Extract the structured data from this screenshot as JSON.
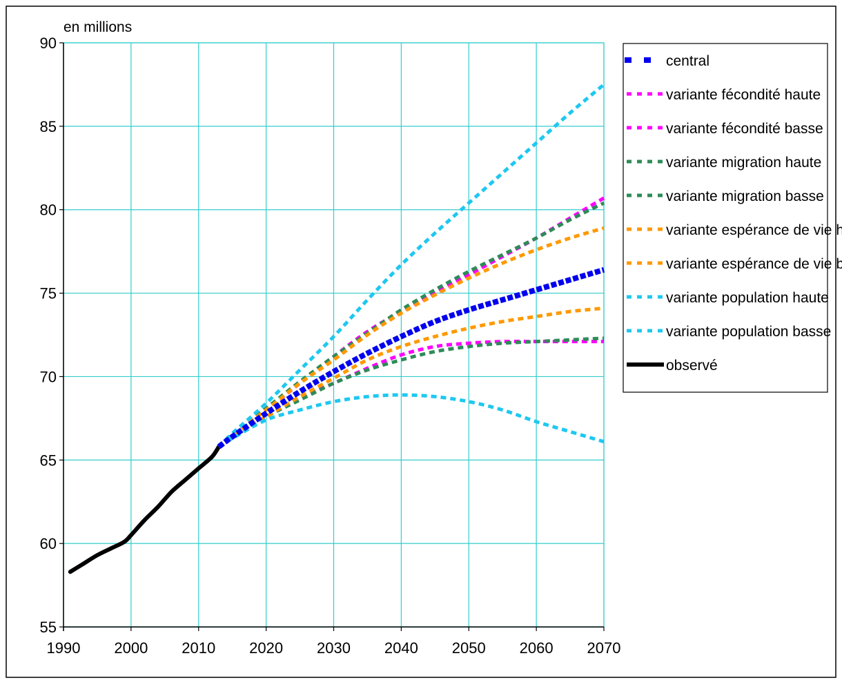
{
  "chart_data": {
    "type": "line",
    "unit_label": "en millions",
    "xlim": [
      1990,
      2070
    ],
    "ylim": [
      55,
      90
    ],
    "x_ticks": [
      1990,
      2000,
      2010,
      2020,
      2030,
      2040,
      2050,
      2060,
      2070
    ],
    "y_ticks": [
      55,
      60,
      65,
      70,
      75,
      80,
      85,
      90
    ],
    "grid": true,
    "legend_position": "right",
    "series": [
      {
        "name": "central",
        "color": "#0000ee",
        "style": "dotted-thick",
        "x": [
          2013,
          2015,
          2020,
          2025,
          2030,
          2035,
          2040,
          2045,
          2050,
          2055,
          2060,
          2065,
          2070
        ],
        "y": [
          65.8,
          66.4,
          67.8,
          69.1,
          70.3,
          71.4,
          72.4,
          73.3,
          74.0,
          74.6,
          75.2,
          75.8,
          76.4
        ]
      },
      {
        "name": "variante fécondité haute",
        "color": "#ff00ff",
        "style": "dotted",
        "x": [
          2013,
          2015,
          2020,
          2025,
          2030,
          2035,
          2040,
          2045,
          2050,
          2055,
          2060,
          2065,
          2070
        ],
        "y": [
          65.8,
          66.5,
          68.0,
          69.6,
          71.2,
          72.7,
          73.9,
          75.0,
          76.1,
          77.2,
          78.3,
          79.5,
          80.7
        ]
      },
      {
        "name": "variante fécondité basse",
        "color": "#ff00ff",
        "style": "dotted",
        "x": [
          2013,
          2015,
          2020,
          2025,
          2030,
          2035,
          2040,
          2045,
          2050,
          2055,
          2060,
          2065,
          2070
        ],
        "y": [
          65.8,
          66.4,
          67.6,
          68.7,
          69.6,
          70.5,
          71.3,
          71.8,
          72.0,
          72.1,
          72.1,
          72.1,
          72.1
        ]
      },
      {
        "name": "variante migration haute",
        "color": "#2e8b57",
        "style": "dotted",
        "x": [
          2013,
          2015,
          2020,
          2025,
          2030,
          2035,
          2040,
          2045,
          2050,
          2055,
          2060,
          2065,
          2070
        ],
        "y": [
          65.8,
          66.5,
          68.1,
          69.7,
          71.2,
          72.6,
          74.0,
          75.2,
          76.3,
          77.3,
          78.3,
          79.4,
          80.4
        ]
      },
      {
        "name": "variante migration basse",
        "color": "#2e8b57",
        "style": "dotted",
        "x": [
          2013,
          2015,
          2020,
          2025,
          2030,
          2035,
          2040,
          2045,
          2050,
          2055,
          2060,
          2065,
          2070
        ],
        "y": [
          65.8,
          66.4,
          67.6,
          68.6,
          69.6,
          70.4,
          71.0,
          71.5,
          71.8,
          72.0,
          72.1,
          72.2,
          72.3
        ]
      },
      {
        "name": "variante espérance de vie haute",
        "color": "#ff9900",
        "style": "dotted",
        "x": [
          2013,
          2015,
          2020,
          2025,
          2030,
          2035,
          2040,
          2045,
          2050,
          2055,
          2060,
          2065,
          2070
        ],
        "y": [
          65.8,
          66.5,
          68.0,
          69.6,
          71.0,
          72.5,
          73.8,
          74.9,
          75.9,
          76.8,
          77.6,
          78.3,
          78.9
        ]
      },
      {
        "name": "variante espérance de vie basse",
        "color": "#ff9900",
        "style": "dotted",
        "x": [
          2013,
          2015,
          2020,
          2025,
          2030,
          2035,
          2040,
          2045,
          2050,
          2055,
          2060,
          2065,
          2070
        ],
        "y": [
          65.8,
          66.4,
          67.6,
          68.8,
          69.9,
          71.0,
          71.8,
          72.4,
          72.9,
          73.3,
          73.6,
          73.9,
          74.1
        ]
      },
      {
        "name": "variante population haute",
        "color": "#1ec8f0",
        "style": "dotted",
        "x": [
          2013,
          2015,
          2020,
          2025,
          2030,
          2035,
          2040,
          2045,
          2050,
          2055,
          2060,
          2065,
          2070
        ],
        "y": [
          65.8,
          66.6,
          68.4,
          70.4,
          72.4,
          74.6,
          76.7,
          78.6,
          80.4,
          82.2,
          84.0,
          85.8,
          87.5
        ]
      },
      {
        "name": "variante population basse",
        "color": "#1ec8f0",
        "style": "dotted",
        "x": [
          2013,
          2015,
          2020,
          2025,
          2030,
          2035,
          2040,
          2045,
          2050,
          2055,
          2060,
          2065,
          2070
        ],
        "y": [
          65.8,
          66.3,
          67.4,
          68.0,
          68.5,
          68.8,
          68.9,
          68.8,
          68.5,
          68.0,
          67.3,
          66.7,
          66.1
        ]
      },
      {
        "name": "observé",
        "color": "#000000",
        "style": "solid",
        "x": [
          1991,
          1993,
          1995,
          1997,
          1999,
          2000,
          2002,
          2004,
          2006,
          2008,
          2010,
          2012,
          2013
        ],
        "y": [
          58.3,
          58.8,
          59.3,
          59.7,
          60.1,
          60.5,
          61.4,
          62.2,
          63.1,
          63.8,
          64.5,
          65.2,
          65.8
        ]
      }
    ]
  }
}
